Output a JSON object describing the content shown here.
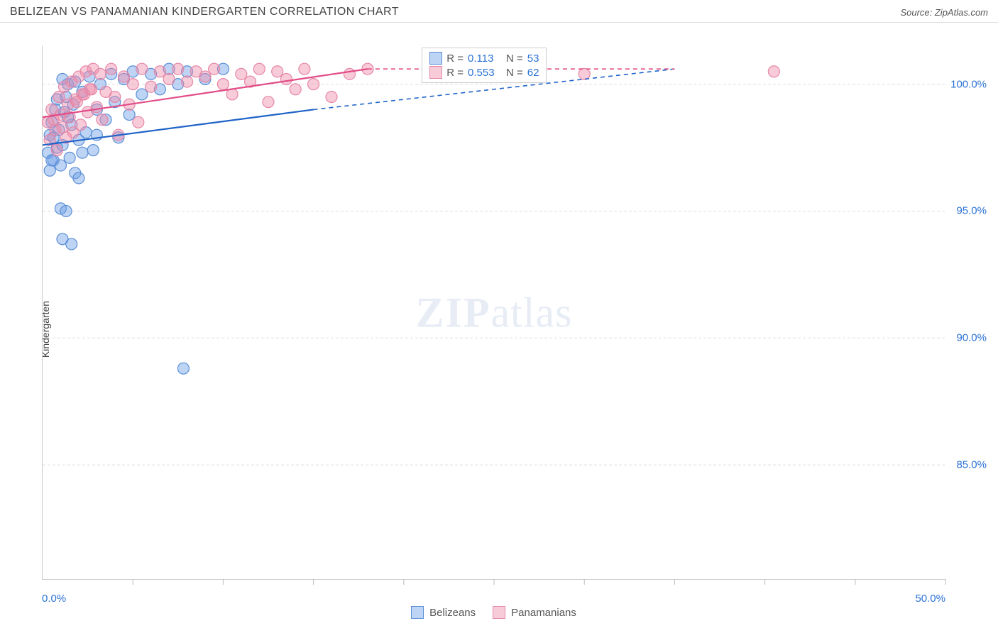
{
  "title": "BELIZEAN VS PANAMANIAN KINDERGARTEN CORRELATION CHART",
  "source": "Source: ZipAtlas.com",
  "yaxis_label": "Kindergarten",
  "watermark_a": "ZIP",
  "watermark_b": "atlas",
  "chart": {
    "type": "scatter",
    "xlim": [
      0,
      50
    ],
    "ylim": [
      80.5,
      101.5
    ],
    "xticks": [
      5,
      10,
      15,
      20,
      25,
      30,
      35,
      40,
      45,
      50
    ],
    "yticks": [
      85.0,
      90.0,
      95.0,
      100.0
    ],
    "ytick_labels": [
      "85.0%",
      "90.0%",
      "95.0%",
      "100.0%"
    ],
    "xlimit_labels": {
      "left": "0.0%",
      "right": "50.0%"
    },
    "grid_color": "#dddddd",
    "background_color": "#ffffff",
    "series": [
      {
        "name": "Belizeans",
        "fill": "rgba(110,160,230,0.45)",
        "stroke": "#5b8fd6",
        "line_color": "#1f63c8",
        "marker_r": 8,
        "R": "0.113",
        "N": "53",
        "points": [
          [
            0.3,
            97.3
          ],
          [
            0.4,
            98.0
          ],
          [
            0.5,
            98.5
          ],
          [
            0.6,
            97.0
          ],
          [
            0.7,
            99.0
          ],
          [
            0.8,
            97.5
          ],
          [
            0.9,
            98.2
          ],
          [
            1.0,
            96.8
          ],
          [
            1.1,
            97.6
          ],
          [
            1.2,
            98.9
          ],
          [
            1.3,
            99.5
          ],
          [
            1.4,
            100.0
          ],
          [
            1.5,
            97.1
          ],
          [
            1.6,
            98.4
          ],
          [
            1.7,
            99.2
          ],
          [
            1.8,
            96.5
          ],
          [
            2.0,
            97.8
          ],
          [
            2.2,
            99.7
          ],
          [
            2.4,
            98.1
          ],
          [
            2.6,
            100.3
          ],
          [
            2.8,
            97.4
          ],
          [
            3.0,
            99.0
          ],
          [
            3.2,
            100.0
          ],
          [
            3.5,
            98.6
          ],
          [
            3.8,
            100.4
          ],
          [
            4.0,
            99.3
          ],
          [
            4.2,
            97.9
          ],
          [
            4.5,
            100.2
          ],
          [
            4.8,
            98.8
          ],
          [
            5.0,
            100.5
          ],
          [
            5.5,
            99.6
          ],
          [
            6.0,
            100.4
          ],
          [
            6.5,
            99.8
          ],
          [
            7.0,
            100.6
          ],
          [
            7.5,
            100.0
          ],
          [
            1.0,
            95.1
          ],
          [
            1.3,
            95.0
          ],
          [
            1.1,
            93.9
          ],
          [
            1.6,
            93.7
          ],
          [
            2.0,
            96.3
          ],
          [
            7.8,
            88.8
          ],
          [
            8.0,
            100.5
          ],
          [
            9.0,
            100.2
          ],
          [
            10.0,
            100.6
          ],
          [
            3.0,
            98.0
          ],
          [
            0.5,
            97.0
          ],
          [
            0.4,
            96.6
          ],
          [
            0.6,
            97.9
          ],
          [
            0.8,
            99.4
          ],
          [
            1.1,
            100.2
          ],
          [
            1.4,
            98.7
          ],
          [
            1.8,
            100.1
          ],
          [
            2.2,
            97.3
          ]
        ],
        "trend": {
          "x1": 0,
          "y1": 97.6,
          "x2": 15,
          "y2": 99.0,
          "x2_ext": 35,
          "y2_ext": 100.6
        }
      },
      {
        "name": "Panamanians",
        "fill": "rgba(240,140,170,0.45)",
        "stroke": "#e587a7",
        "line_color": "#e24b86",
        "marker_r": 8,
        "R": "0.553",
        "N": "62",
        "points": [
          [
            0.3,
            98.5
          ],
          [
            0.5,
            99.0
          ],
          [
            0.7,
            98.2
          ],
          [
            0.9,
            99.5
          ],
          [
            1.0,
            98.8
          ],
          [
            1.2,
            99.9
          ],
          [
            1.4,
            99.2
          ],
          [
            1.6,
            100.1
          ],
          [
            1.8,
            99.4
          ],
          [
            2.0,
            100.3
          ],
          [
            2.2,
            99.6
          ],
          [
            2.4,
            100.5
          ],
          [
            2.6,
            99.8
          ],
          [
            2.8,
            100.6
          ],
          [
            3.0,
            99.1
          ],
          [
            3.2,
            100.4
          ],
          [
            3.5,
            99.7
          ],
          [
            3.8,
            100.6
          ],
          [
            4.0,
            99.5
          ],
          [
            4.5,
            100.3
          ],
          [
            5.0,
            100.0
          ],
          [
            5.5,
            100.6
          ],
          [
            6.0,
            99.9
          ],
          [
            6.5,
            100.5
          ],
          [
            7.0,
            100.2
          ],
          [
            7.5,
            100.6
          ],
          [
            8.0,
            100.1
          ],
          [
            8.5,
            100.5
          ],
          [
            9.0,
            100.3
          ],
          [
            9.5,
            100.6
          ],
          [
            10.0,
            100.0
          ],
          [
            10.5,
            99.6
          ],
          [
            11.0,
            100.4
          ],
          [
            11.5,
            100.1
          ],
          [
            12.0,
            100.6
          ],
          [
            12.5,
            99.3
          ],
          [
            13.0,
            100.5
          ],
          [
            13.5,
            100.2
          ],
          [
            14.0,
            99.8
          ],
          [
            14.5,
            100.6
          ],
          [
            15.0,
            100.0
          ],
          [
            16.0,
            99.5
          ],
          [
            17.0,
            100.4
          ],
          [
            18.0,
            100.6
          ],
          [
            30.0,
            100.4
          ],
          [
            40.5,
            100.5
          ],
          [
            0.4,
            97.8
          ],
          [
            0.6,
            98.6
          ],
          [
            0.8,
            97.4
          ],
          [
            1.1,
            98.3
          ],
          [
            1.3,
            97.9
          ],
          [
            1.5,
            98.7
          ],
          [
            1.7,
            98.1
          ],
          [
            1.9,
            99.3
          ],
          [
            2.1,
            98.4
          ],
          [
            2.3,
            99.6
          ],
          [
            2.5,
            98.9
          ],
          [
            2.7,
            99.8
          ],
          [
            3.3,
            98.6
          ],
          [
            4.2,
            98.0
          ],
          [
            4.8,
            99.2
          ],
          [
            5.3,
            98.5
          ]
        ],
        "trend": {
          "x1": 0,
          "y1": 98.7,
          "x2": 18,
          "y2": 100.6,
          "x2_ext": 35,
          "y2_ext": 100.6
        }
      }
    ]
  }
}
